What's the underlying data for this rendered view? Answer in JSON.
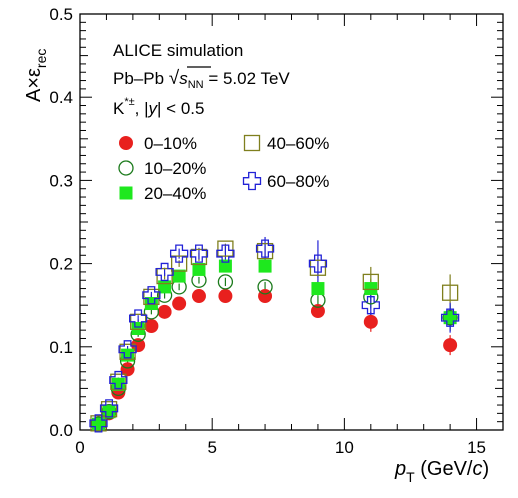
{
  "chart_data": {
    "type": "scatter",
    "xlabel_main": "p",
    "xlabel_sub": "T",
    "xlabel_units_pre": " (GeV/",
    "xlabel_units_italic": "c",
    "xlabel_units_post": ")",
    "ylabel_main": "A×ε",
    "ylabel_sub": "rec",
    "xlim": [
      0,
      16
    ],
    "ylim": [
      0,
      0.5
    ],
    "x_ticks": [
      0,
      5,
      10,
      15
    ],
    "x_tick_labels": [
      "0",
      "5",
      "10",
      "15"
    ],
    "y_ticks": [
      0,
      0.1,
      0.2,
      0.3,
      0.4,
      0.5
    ],
    "y_tick_labels": [
      "0.0",
      "0.1",
      "0.2",
      "0.3",
      "0.4",
      "0.5"
    ],
    "annotations": {
      "line1": "ALICE simulation",
      "line2_pre": "Pb–Pb ",
      "line2_s": "s",
      "line2_sub": "NN",
      "line2_post": " = 5.02 TeV",
      "line3_K": "K",
      "line3_sup": "*±",
      "line3_post_a": ", |",
      "line3_y": "y",
      "line3_post_b": "| < 0.5"
    },
    "legend_placement": "upper-left",
    "series": [
      {
        "name": "0–10%",
        "marker": "filled-circle",
        "color": "#e8201e",
        "x": [
          0.7,
          1.1,
          1.45,
          1.8,
          2.2,
          2.7,
          3.2,
          3.75,
          4.5,
          5.5,
          7.0,
          9.0,
          11.0,
          14.0
        ],
        "y": [
          0.006,
          0.02,
          0.045,
          0.073,
          0.102,
          0.125,
          0.142,
          0.152,
          0.161,
          0.161,
          0.161,
          0.143,
          0.13,
          0.102
        ],
        "err": [
          0.001,
          0.002,
          0.003,
          0.003,
          0.003,
          0.003,
          0.003,
          0.003,
          0.004,
          0.004,
          0.005,
          0.007,
          0.012,
          0.012
        ]
      },
      {
        "name": "10–20%",
        "marker": "open-circle",
        "color": "#1b7a1b",
        "x": [
          0.7,
          1.1,
          1.45,
          1.8,
          2.2,
          2.7,
          3.2,
          3.75,
          4.5,
          5.5,
          7.0,
          9.0,
          11.0,
          14.0
        ],
        "y": [
          0.007,
          0.022,
          0.05,
          0.083,
          0.115,
          0.142,
          0.162,
          0.172,
          0.18,
          0.178,
          0.172,
          0.156,
          0.16,
          0.135
        ],
        "err": [
          0.001,
          0.002,
          0.003,
          0.003,
          0.003,
          0.003,
          0.004,
          0.004,
          0.004,
          0.005,
          0.006,
          0.008,
          0.014,
          0.016
        ]
      },
      {
        "name": "20–40%",
        "marker": "filled-square",
        "color": "#1ee81e",
        "x": [
          0.7,
          1.1,
          1.45,
          1.8,
          2.2,
          2.7,
          3.2,
          3.75,
          4.5,
          5.5,
          7.0,
          9.0,
          11.0,
          14.0
        ],
        "y": [
          0.007,
          0.022,
          0.055,
          0.09,
          0.122,
          0.152,
          0.172,
          0.185,
          0.193,
          0.197,
          0.197,
          0.17,
          0.17,
          0.135
        ],
        "err": [
          0.001,
          0.002,
          0.003,
          0.003,
          0.003,
          0.003,
          0.004,
          0.004,
          0.004,
          0.005,
          0.006,
          0.009,
          0.012,
          0.014
        ]
      },
      {
        "name": "40–60%",
        "marker": "open-square",
        "color": "#7f7f1e",
        "x": [
          0.7,
          1.1,
          1.45,
          1.8,
          2.2,
          2.7,
          3.2,
          3.75,
          4.5,
          5.5,
          7.0,
          9.0,
          11.0,
          14.0
        ],
        "y": [
          0.008,
          0.025,
          0.058,
          0.094,
          0.13,
          0.16,
          0.185,
          0.2,
          0.208,
          0.218,
          0.215,
          0.195,
          0.178,
          0.165
        ],
        "err": [
          0.001,
          0.002,
          0.003,
          0.003,
          0.003,
          0.003,
          0.004,
          0.004,
          0.005,
          0.006,
          0.008,
          0.012,
          0.018,
          0.022
        ]
      },
      {
        "name": "60–80%",
        "marker": "open-cross",
        "color": "#2222d6",
        "x": [
          0.7,
          1.1,
          1.45,
          1.8,
          2.2,
          2.7,
          3.2,
          3.75,
          4.5,
          5.5,
          7.0,
          9.0,
          11.0,
          14.0
        ],
        "y": [
          0.008,
          0.026,
          0.06,
          0.097,
          0.134,
          0.162,
          0.19,
          0.212,
          0.212,
          0.212,
          0.218,
          0.2,
          0.15,
          0.135
        ],
        "err": [
          0.001,
          0.002,
          0.003,
          0.004,
          0.004,
          0.004,
          0.005,
          0.006,
          0.007,
          0.009,
          0.014,
          0.028,
          0.022,
          0.018
        ]
      }
    ]
  }
}
